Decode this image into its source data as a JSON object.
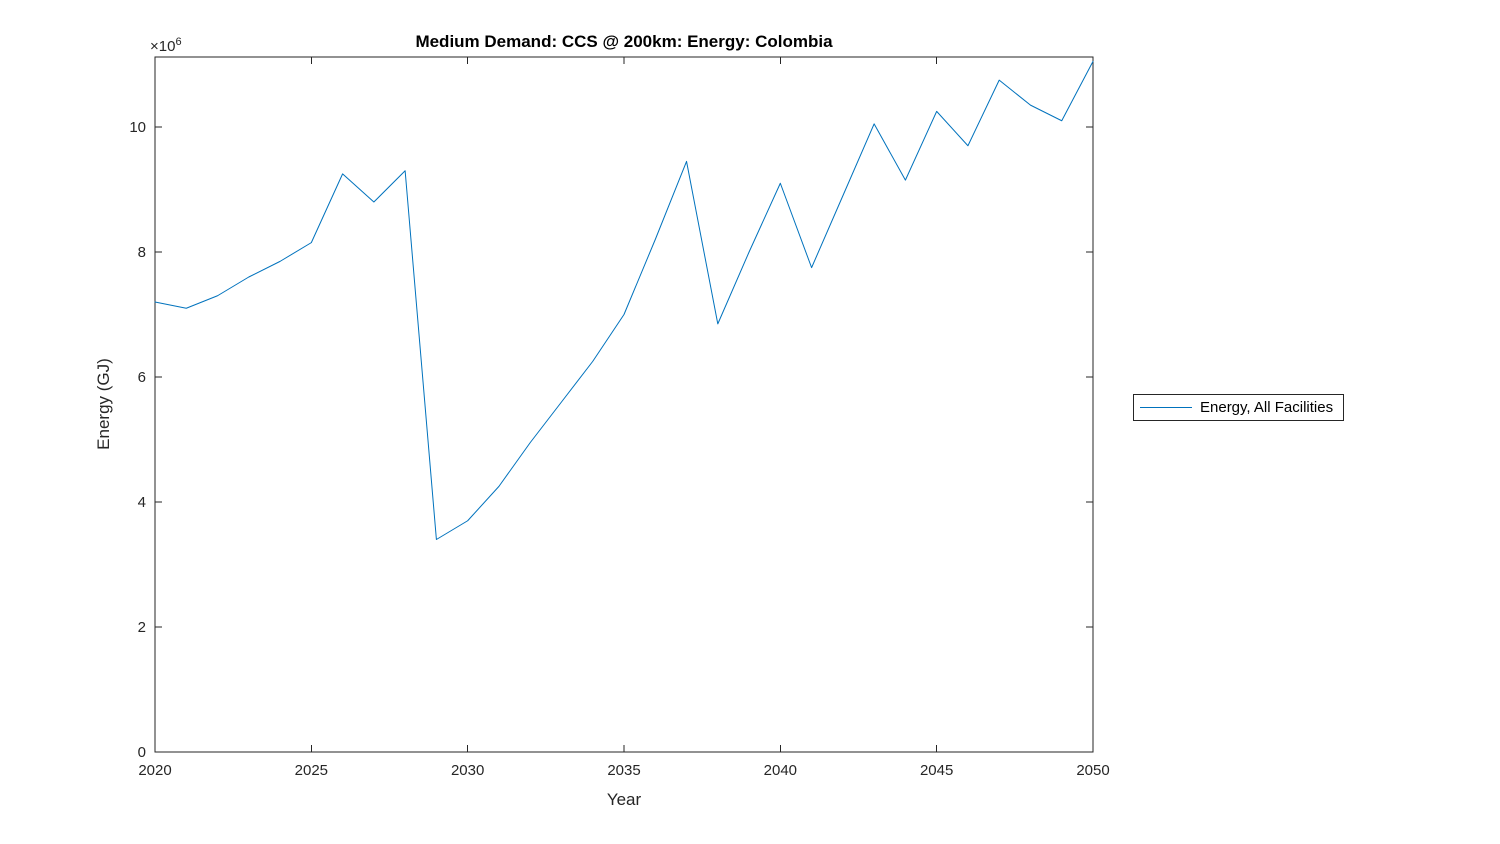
{
  "chart": {
    "title": "Medium Demand: CCS @ 200km: Energy: Colombia",
    "xlabel": "Year",
    "ylabel": "Energy (GJ)",
    "y_multiplier_base": "×10",
    "y_multiplier_exp": "6"
  },
  "legend": {
    "label": "Energy, All Facilities"
  },
  "colors": {
    "line": "#0072BD",
    "axis": "#262626",
    "title_text": "#000000"
  },
  "chart_data": {
    "type": "line",
    "title": "Medium Demand: CCS @ 200km: Energy: Colombia",
    "xlabel": "Year",
    "ylabel": "Energy (GJ)",
    "y_unit_multiplier": 1000000,
    "legend_position": "right-outside",
    "grid": false,
    "xlim": [
      2020,
      2050
    ],
    "ylim": [
      0,
      11.12
    ],
    "x_ticks": [
      2020,
      2025,
      2030,
      2035,
      2040,
      2045,
      2050
    ],
    "y_ticks": [
      0,
      2,
      4,
      6,
      8,
      10
    ],
    "x": [
      2020,
      2021,
      2022,
      2023,
      2024,
      2025,
      2026,
      2027,
      2028,
      2029,
      2030,
      2031,
      2032,
      2033,
      2034,
      2035,
      2036,
      2037,
      2038,
      2039,
      2040,
      2041,
      2042,
      2043,
      2044,
      2045,
      2046,
      2047,
      2048,
      2049,
      2050
    ],
    "series": [
      {
        "name": "Energy, All Facilities",
        "values": [
          7.2,
          7.1,
          7.3,
          7.6,
          7.85,
          8.15,
          9.25,
          8.8,
          9.3,
          3.4,
          3.7,
          4.25,
          4.95,
          5.6,
          6.25,
          7.0,
          8.2,
          9.45,
          6.85,
          8.0,
          9.1,
          7.75,
          8.9,
          10.05,
          9.15,
          10.25,
          9.7,
          10.75,
          10.35,
          10.1,
          11.05
        ]
      }
    ]
  }
}
